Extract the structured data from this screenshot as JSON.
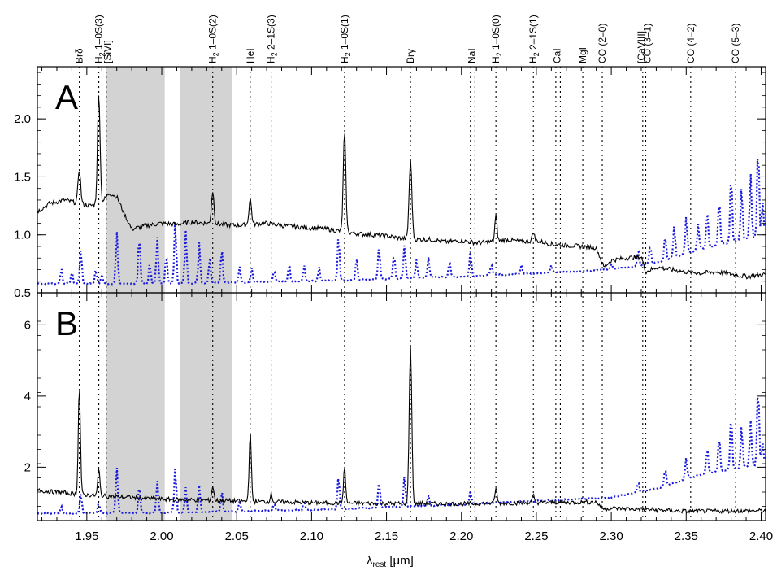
{
  "chart_data": {
    "type": "line",
    "xlabel": "λrest [μm]",
    "xlabel_main": "λ",
    "xlabel_sub": "rest",
    "xlabel_unit": " [μm]",
    "xlim": [
      1.917,
      2.403
    ],
    "x_ticks": [
      1.95,
      2.0,
      2.05,
      2.1,
      2.15,
      2.2,
      2.25,
      2.3,
      2.35,
      2.4
    ],
    "x_tick_labels": [
      "1.95",
      "2.00",
      "2.05",
      "2.10",
      "2.15",
      "2.20",
      "2.25",
      "2.30",
      "2.35",
      "2.40"
    ],
    "masked_regions": [
      [
        1.963,
        2.002
      ],
      [
        2.012,
        2.047
      ]
    ],
    "lines": [
      {
        "name": "Brδ",
        "main": "Brδ",
        "sub": "",
        "rest": "",
        "x": 1.945,
        "label_x": 1.945
      },
      {
        "name": "H2 1–0S(3)",
        "main": "H",
        "sub": "2",
        "rest": " 1–0S(3)",
        "x": 1.958,
        "label_x": 1.958
      },
      {
        "name": "[SiVI]",
        "main": "[SiVI]",
        "sub": "",
        "rest": "",
        "x": 1.963,
        "label_x": 1.964
      },
      {
        "name": "H2 1–0S(2)",
        "main": "H",
        "sub": "2",
        "rest": " 1–0S(2)",
        "x": 2.034,
        "label_x": 2.034
      },
      {
        "name": "HeI",
        "main": "HeI",
        "sub": "",
        "rest": "",
        "x": 2.059,
        "label_x": 2.059
      },
      {
        "name": "H2 2–1S(3)",
        "main": "H",
        "sub": "2",
        "rest": " 2–1S(3)",
        "x": 2.073,
        "label_x": 2.073
      },
      {
        "name": "H2 1–0S(1)",
        "main": "H",
        "sub": "2",
        "rest": " 1–0S(1)",
        "x": 2.122,
        "label_x": 2.122
      },
      {
        "name": "Brγ",
        "main": "Brγ",
        "sub": "",
        "rest": "",
        "x": 2.166,
        "label_x": 2.166
      },
      {
        "name": "NaI a",
        "main": "NaI",
        "sub": "",
        "rest": "",
        "x": 2.206,
        "label_x": 2.207
      },
      {
        "name": "NaI b",
        "main": "",
        "sub": "",
        "rest": "",
        "x": 2.209,
        "label_x": 2.209
      },
      {
        "name": "H2 1–0S(0)",
        "main": "H",
        "sub": "2",
        "rest": " 1–0S(0)",
        "x": 2.223,
        "label_x": 2.223
      },
      {
        "name": "H2 2–1S(1)",
        "main": "H",
        "sub": "2",
        "rest": " 2–1S(1)",
        "x": 2.248,
        "label_x": 2.248
      },
      {
        "name": "CaI a",
        "main": "CaI",
        "sub": "",
        "rest": "",
        "x": 2.263,
        "label_x": 2.264
      },
      {
        "name": "CaI b",
        "main": "",
        "sub": "",
        "rest": "",
        "x": 2.266,
        "label_x": 2.266
      },
      {
        "name": "MgI",
        "main": "MgI",
        "sub": "",
        "rest": "",
        "x": 2.281,
        "label_x": 2.281
      },
      {
        "name": "CO (2–0)",
        "main": "CO (2–0)",
        "sub": "",
        "rest": "",
        "x": 2.294,
        "label_x": 2.294
      },
      {
        "name": "[CaVIII]",
        "main": "[CaVIII]",
        "sub": "",
        "rest": "",
        "x": 2.321,
        "label_x": 2.32
      },
      {
        "name": "CO (3–1)",
        "main": "CO (3–1)",
        "sub": "",
        "rest": "",
        "x": 2.323,
        "label_x": 2.324
      },
      {
        "name": "CO (4–2)",
        "main": "CO (4–2)",
        "sub": "",
        "rest": "",
        "x": 2.353,
        "label_x": 2.353
      },
      {
        "name": "CO (5–3)",
        "main": "CO (5–3)",
        "sub": "",
        "rest": "",
        "x": 2.383,
        "label_x": 2.383
      }
    ],
    "panels": [
      {
        "letter": "A",
        "ylim": [
          0.5,
          2.45
        ],
        "y_ticks": [
          0.5,
          1.0,
          1.5,
          2.0
        ],
        "y_tick_labels": [
          "0.5",
          "1.0",
          "1.5",
          "2.0"
        ],
        "continuum": [
          [
            1.917,
            1.2
          ],
          [
            1.925,
            1.27
          ],
          [
            1.935,
            1.3
          ],
          [
            1.945,
            1.27
          ],
          [
            1.952,
            1.25
          ],
          [
            1.96,
            1.28
          ],
          [
            1.965,
            1.36
          ],
          [
            1.97,
            1.33
          ],
          [
            1.975,
            1.18
          ],
          [
            1.98,
            1.05
          ],
          [
            1.99,
            1.08
          ],
          [
            2.0,
            1.1
          ],
          [
            2.01,
            1.09
          ],
          [
            2.02,
            1.11
          ],
          [
            2.03,
            1.1
          ],
          [
            2.04,
            1.09
          ],
          [
            2.05,
            1.08
          ],
          [
            2.06,
            1.09
          ],
          [
            2.07,
            1.1
          ],
          [
            2.08,
            1.08
          ],
          [
            2.09,
            1.07
          ],
          [
            2.1,
            1.06
          ],
          [
            2.11,
            1.05
          ],
          [
            2.12,
            1.03
          ],
          [
            2.13,
            1.01
          ],
          [
            2.14,
            1.0
          ],
          [
            2.15,
            0.99
          ],
          [
            2.16,
            0.97
          ],
          [
            2.17,
            0.96
          ],
          [
            2.18,
            0.96
          ],
          [
            2.19,
            0.94
          ],
          [
            2.2,
            0.95
          ],
          [
            2.21,
            0.93
          ],
          [
            2.22,
            0.94
          ],
          [
            2.23,
            0.96
          ],
          [
            2.24,
            0.94
          ],
          [
            2.25,
            0.95
          ],
          [
            2.26,
            0.92
          ],
          [
            2.27,
            0.91
          ],
          [
            2.28,
            0.9
          ],
          [
            2.29,
            0.89
          ],
          [
            2.295,
            0.72
          ],
          [
            2.3,
            0.78
          ],
          [
            2.31,
            0.8
          ],
          [
            2.32,
            0.81
          ],
          [
            2.323,
            0.68
          ],
          [
            2.33,
            0.72
          ],
          [
            2.34,
            0.7
          ],
          [
            2.35,
            0.68
          ],
          [
            2.36,
            0.67
          ],
          [
            2.37,
            0.68
          ],
          [
            2.38,
            0.66
          ],
          [
            2.39,
            0.64
          ],
          [
            2.403,
            0.66
          ]
        ],
        "emission": [
          {
            "x": 1.945,
            "h": 0.3,
            "w": 0.0012
          },
          {
            "x": 1.958,
            "h": 0.95,
            "w": 0.0012
          },
          {
            "x": 2.034,
            "h": 0.28,
            "w": 0.0012
          },
          {
            "x": 2.059,
            "h": 0.22,
            "w": 0.0012
          },
          {
            "x": 2.122,
            "h": 0.86,
            "w": 0.0012
          },
          {
            "x": 2.166,
            "h": 0.68,
            "w": 0.0013
          },
          {
            "x": 2.223,
            "h": 0.22,
            "w": 0.001
          },
          {
            "x": 2.248,
            "h": 0.08,
            "w": 0.001
          }
        ],
        "noise": 0.02,
        "dotted_base": [
          [
            1.917,
            0.58
          ],
          [
            2.0,
            0.58
          ],
          [
            2.1,
            0.6
          ],
          [
            2.2,
            0.64
          ],
          [
            2.3,
            0.7
          ],
          [
            2.33,
            0.76
          ],
          [
            2.36,
            0.88
          ],
          [
            2.403,
            1.0
          ]
        ],
        "dotted_spikes": [
          [
            1.933,
            0.13
          ],
          [
            1.94,
            0.1
          ],
          [
            1.946,
            0.3
          ],
          [
            1.956,
            0.12
          ],
          [
            1.96,
            0.08
          ],
          [
            1.97,
            0.45
          ],
          [
            1.985,
            0.42
          ],
          [
            1.992,
            0.18
          ],
          [
            1.997,
            0.4
          ],
          [
            2.003,
            0.25
          ],
          [
            2.009,
            0.55
          ],
          [
            2.016,
            0.46
          ],
          [
            2.025,
            0.35
          ],
          [
            2.032,
            0.22
          ],
          [
            2.04,
            0.3
          ],
          [
            2.052,
            0.14
          ],
          [
            2.06,
            0.12
          ],
          [
            2.075,
            0.1
          ],
          [
            2.085,
            0.15
          ],
          [
            2.095,
            0.14
          ],
          [
            2.105,
            0.12
          ],
          [
            2.118,
            0.4
          ],
          [
            2.13,
            0.2
          ],
          [
            2.145,
            0.28
          ],
          [
            2.155,
            0.22
          ],
          [
            2.162,
            0.3
          ],
          [
            2.17,
            0.16
          ],
          [
            2.178,
            0.18
          ],
          [
            2.192,
            0.14
          ],
          [
            2.206,
            0.22
          ],
          [
            2.22,
            0.1
          ],
          [
            2.24,
            0.08
          ],
          [
            2.26,
            0.06
          ],
          [
            2.3,
            0.05
          ],
          [
            2.318,
            0.14
          ],
          [
            2.326,
            0.16
          ],
          [
            2.336,
            0.22
          ],
          [
            2.342,
            0.28
          ],
          [
            2.35,
            0.32
          ],
          [
            2.358,
            0.22
          ],
          [
            2.364,
            0.32
          ],
          [
            2.372,
            0.4
          ],
          [
            2.38,
            0.6
          ],
          [
            2.387,
            0.46
          ],
          [
            2.393,
            0.56
          ],
          [
            2.398,
            0.82
          ],
          [
            2.401,
            0.3
          ]
        ]
      },
      {
        "letter": "B",
        "ylim": [
          0.5,
          6.9
        ],
        "y_ticks": [
          2,
          4,
          6
        ],
        "y_tick_labels": [
          "2",
          "4",
          "6"
        ],
        "continuum": [
          [
            1.917,
            1.35
          ],
          [
            1.95,
            1.22
          ],
          [
            2.0,
            1.1
          ],
          [
            2.05,
            1.05
          ],
          [
            2.1,
            1.0
          ],
          [
            2.15,
            0.98
          ],
          [
            2.2,
            0.97
          ],
          [
            2.25,
            1.0
          ],
          [
            2.29,
            1.02
          ],
          [
            2.295,
            0.82
          ],
          [
            2.3,
            0.85
          ],
          [
            2.32,
            0.82
          ],
          [
            2.35,
            0.76
          ],
          [
            2.403,
            0.78
          ]
        ],
        "emission": [
          {
            "x": 1.945,
            "h": 3.05,
            "w": 0.001
          },
          {
            "x": 1.958,
            "h": 0.75,
            "w": 0.001
          },
          {
            "x": 2.034,
            "h": 0.4,
            "w": 0.001
          },
          {
            "x": 2.059,
            "h": 1.95,
            "w": 0.001
          },
          {
            "x": 2.073,
            "h": 0.22,
            "w": 0.001
          },
          {
            "x": 2.122,
            "h": 1.0,
            "w": 0.001
          },
          {
            "x": 2.166,
            "h": 4.45,
            "w": 0.0012
          },
          {
            "x": 2.223,
            "h": 0.42,
            "w": 0.001
          },
          {
            "x": 2.248,
            "h": 0.2,
            "w": 0.001
          }
        ],
        "noise": 0.06,
        "dotted_base": [
          [
            1.917,
            0.7
          ],
          [
            2.0,
            0.72
          ],
          [
            2.1,
            0.8
          ],
          [
            2.2,
            0.95
          ],
          [
            2.3,
            1.15
          ],
          [
            2.33,
            1.4
          ],
          [
            2.36,
            1.8
          ],
          [
            2.403,
            2.1
          ]
        ],
        "dotted_spikes": [
          [
            1.933,
            0.2
          ],
          [
            1.946,
            0.55
          ],
          [
            1.958,
            0.3
          ],
          [
            1.97,
            1.3
          ],
          [
            1.985,
            0.8
          ],
          [
            1.997,
            0.9
          ],
          [
            2.009,
            1.3
          ],
          [
            2.016,
            0.7
          ],
          [
            2.025,
            0.75
          ],
          [
            2.04,
            0.6
          ],
          [
            2.052,
            0.3
          ],
          [
            2.075,
            0.2
          ],
          [
            2.095,
            0.25
          ],
          [
            2.118,
            0.95
          ],
          [
            2.145,
            0.75
          ],
          [
            2.162,
            0.9
          ],
          [
            2.178,
            0.3
          ],
          [
            2.206,
            0.4
          ],
          [
            2.318,
            0.3
          ],
          [
            2.336,
            0.5
          ],
          [
            2.35,
            0.6
          ],
          [
            2.364,
            0.7
          ],
          [
            2.372,
            1.0
          ],
          [
            2.38,
            1.6
          ],
          [
            2.387,
            1.2
          ],
          [
            2.393,
            1.3
          ],
          [
            2.398,
            2.3
          ],
          [
            2.401,
            0.6
          ]
        ]
      }
    ]
  },
  "colors": {
    "target": "#000000",
    "template": "#1a1adc",
    "mask": "#d3d3d3"
  }
}
